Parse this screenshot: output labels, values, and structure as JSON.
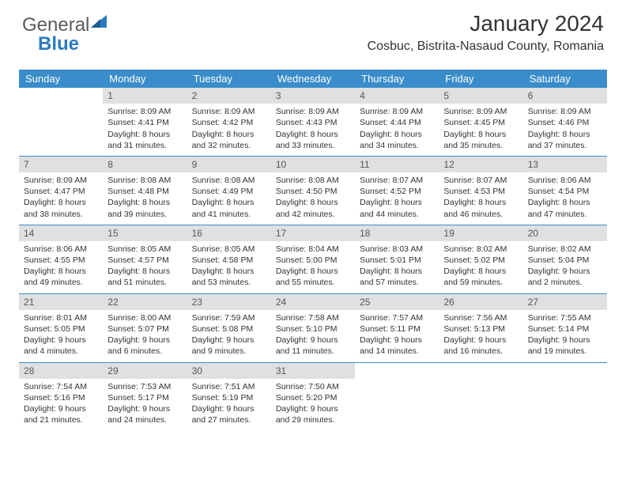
{
  "brand": {
    "part1": "General",
    "part2": "Blue"
  },
  "title": "January 2024",
  "location": "Cosbuc, Bistrita-Nasaud County, Romania",
  "colors": {
    "header_bg": "#3a8dca",
    "header_text": "#ffffff",
    "daynum_bg": "#e0e0e0",
    "daynum_text": "#555555",
    "body_text": "#333333",
    "row_border": "#3a8dca",
    "logo_gray": "#5a5a5a",
    "logo_blue": "#2a7bbf",
    "page_bg": "#ffffff"
  },
  "typography": {
    "title_fontsize": 28,
    "location_fontsize": 16,
    "weekday_fontsize": 13,
    "daynum_fontsize": 12,
    "cell_fontsize": 10.5,
    "logo_fontsize": 24
  },
  "weekdays": [
    "Sunday",
    "Monday",
    "Tuesday",
    "Wednesday",
    "Thursday",
    "Friday",
    "Saturday"
  ],
  "weeks": [
    [
      null,
      {
        "n": "1",
        "sr": "Sunrise: 8:09 AM",
        "ss": "Sunset: 4:41 PM",
        "dl": "Daylight: 8 hours and 31 minutes."
      },
      {
        "n": "2",
        "sr": "Sunrise: 8:09 AM",
        "ss": "Sunset: 4:42 PM",
        "dl": "Daylight: 8 hours and 32 minutes."
      },
      {
        "n": "3",
        "sr": "Sunrise: 8:09 AM",
        "ss": "Sunset: 4:43 PM",
        "dl": "Daylight: 8 hours and 33 minutes."
      },
      {
        "n": "4",
        "sr": "Sunrise: 8:09 AM",
        "ss": "Sunset: 4:44 PM",
        "dl": "Daylight: 8 hours and 34 minutes."
      },
      {
        "n": "5",
        "sr": "Sunrise: 8:09 AM",
        "ss": "Sunset: 4:45 PM",
        "dl": "Daylight: 8 hours and 35 minutes."
      },
      {
        "n": "6",
        "sr": "Sunrise: 8:09 AM",
        "ss": "Sunset: 4:46 PM",
        "dl": "Daylight: 8 hours and 37 minutes."
      }
    ],
    [
      {
        "n": "7",
        "sr": "Sunrise: 8:09 AM",
        "ss": "Sunset: 4:47 PM",
        "dl": "Daylight: 8 hours and 38 minutes."
      },
      {
        "n": "8",
        "sr": "Sunrise: 8:08 AM",
        "ss": "Sunset: 4:48 PM",
        "dl": "Daylight: 8 hours and 39 minutes."
      },
      {
        "n": "9",
        "sr": "Sunrise: 8:08 AM",
        "ss": "Sunset: 4:49 PM",
        "dl": "Daylight: 8 hours and 41 minutes."
      },
      {
        "n": "10",
        "sr": "Sunrise: 8:08 AM",
        "ss": "Sunset: 4:50 PM",
        "dl": "Daylight: 8 hours and 42 minutes."
      },
      {
        "n": "11",
        "sr": "Sunrise: 8:07 AM",
        "ss": "Sunset: 4:52 PM",
        "dl": "Daylight: 8 hours and 44 minutes."
      },
      {
        "n": "12",
        "sr": "Sunrise: 8:07 AM",
        "ss": "Sunset: 4:53 PM",
        "dl": "Daylight: 8 hours and 46 minutes."
      },
      {
        "n": "13",
        "sr": "Sunrise: 8:06 AM",
        "ss": "Sunset: 4:54 PM",
        "dl": "Daylight: 8 hours and 47 minutes."
      }
    ],
    [
      {
        "n": "14",
        "sr": "Sunrise: 8:06 AM",
        "ss": "Sunset: 4:55 PM",
        "dl": "Daylight: 8 hours and 49 minutes."
      },
      {
        "n": "15",
        "sr": "Sunrise: 8:05 AM",
        "ss": "Sunset: 4:57 PM",
        "dl": "Daylight: 8 hours and 51 minutes."
      },
      {
        "n": "16",
        "sr": "Sunrise: 8:05 AM",
        "ss": "Sunset: 4:58 PM",
        "dl": "Daylight: 8 hours and 53 minutes."
      },
      {
        "n": "17",
        "sr": "Sunrise: 8:04 AM",
        "ss": "Sunset: 5:00 PM",
        "dl": "Daylight: 8 hours and 55 minutes."
      },
      {
        "n": "18",
        "sr": "Sunrise: 8:03 AM",
        "ss": "Sunset: 5:01 PM",
        "dl": "Daylight: 8 hours and 57 minutes."
      },
      {
        "n": "19",
        "sr": "Sunrise: 8:02 AM",
        "ss": "Sunset: 5:02 PM",
        "dl": "Daylight: 8 hours and 59 minutes."
      },
      {
        "n": "20",
        "sr": "Sunrise: 8:02 AM",
        "ss": "Sunset: 5:04 PM",
        "dl": "Daylight: 9 hours and 2 minutes."
      }
    ],
    [
      {
        "n": "21",
        "sr": "Sunrise: 8:01 AM",
        "ss": "Sunset: 5:05 PM",
        "dl": "Daylight: 9 hours and 4 minutes."
      },
      {
        "n": "22",
        "sr": "Sunrise: 8:00 AM",
        "ss": "Sunset: 5:07 PM",
        "dl": "Daylight: 9 hours and 6 minutes."
      },
      {
        "n": "23",
        "sr": "Sunrise: 7:59 AM",
        "ss": "Sunset: 5:08 PM",
        "dl": "Daylight: 9 hours and 9 minutes."
      },
      {
        "n": "24",
        "sr": "Sunrise: 7:58 AM",
        "ss": "Sunset: 5:10 PM",
        "dl": "Daylight: 9 hours and 11 minutes."
      },
      {
        "n": "25",
        "sr": "Sunrise: 7:57 AM",
        "ss": "Sunset: 5:11 PM",
        "dl": "Daylight: 9 hours and 14 minutes."
      },
      {
        "n": "26",
        "sr": "Sunrise: 7:56 AM",
        "ss": "Sunset: 5:13 PM",
        "dl": "Daylight: 9 hours and 16 minutes."
      },
      {
        "n": "27",
        "sr": "Sunrise: 7:55 AM",
        "ss": "Sunset: 5:14 PM",
        "dl": "Daylight: 9 hours and 19 minutes."
      }
    ],
    [
      {
        "n": "28",
        "sr": "Sunrise: 7:54 AM",
        "ss": "Sunset: 5:16 PM",
        "dl": "Daylight: 9 hours and 21 minutes."
      },
      {
        "n": "29",
        "sr": "Sunrise: 7:53 AM",
        "ss": "Sunset: 5:17 PM",
        "dl": "Daylight: 9 hours and 24 minutes."
      },
      {
        "n": "30",
        "sr": "Sunrise: 7:51 AM",
        "ss": "Sunset: 5:19 PM",
        "dl": "Daylight: 9 hours and 27 minutes."
      },
      {
        "n": "31",
        "sr": "Sunrise: 7:50 AM",
        "ss": "Sunset: 5:20 PM",
        "dl": "Daylight: 9 hours and 29 minutes."
      },
      null,
      null,
      null
    ]
  ]
}
